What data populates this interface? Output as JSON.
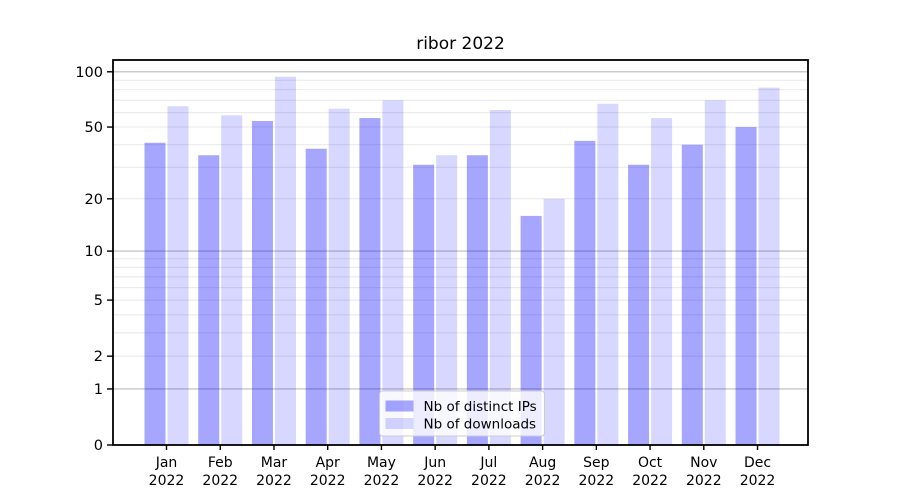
{
  "chart_data": {
    "type": "bar",
    "title": "ribor 2022",
    "categories": [
      "Jan",
      "Feb",
      "Mar",
      "Apr",
      "May",
      "Jun",
      "Jul",
      "Aug",
      "Sep",
      "Oct",
      "Nov",
      "Dec"
    ],
    "category_year": "2022",
    "series": [
      {
        "name": "Nb of distinct IPs",
        "color": "rgba(0,0,255,0.35)",
        "values": [
          41,
          35,
          54,
          38,
          56,
          31,
          35,
          16,
          42,
          31,
          40,
          50
        ]
      },
      {
        "name": "Nb of downloads",
        "color": "rgba(0,0,255,0.155)",
        "values": [
          65,
          58,
          94,
          63,
          70,
          35,
          62,
          20,
          67,
          56,
          70,
          82
        ]
      }
    ],
    "y_axis": {
      "scale": "log1p",
      "tick_labels": [
        "0",
        "1",
        "2",
        "5",
        "10",
        "20",
        "50",
        "100"
      ],
      "tick_values": [
        0,
        1,
        2,
        5,
        10,
        20,
        50,
        100
      ],
      "major_gridlines": [
        1,
        10,
        100
      ],
      "minor_gridlines": [
        2,
        3,
        4,
        5,
        6,
        7,
        8,
        9,
        20,
        30,
        40,
        50,
        60,
        70,
        80,
        90
      ],
      "top_value": 116
    },
    "legend": {
      "position": "lower center",
      "entries": [
        "Nb of distinct IPs",
        "Nb of downloads"
      ]
    },
    "grid": true
  },
  "colors": {
    "background": "#ffffff",
    "spine": "#000000",
    "grid_major": "#bcbcbc",
    "grid_minor": "#e8e8e8",
    "tick": "#000000",
    "text": "#000000",
    "legend_bg": "rgba(255,255,255,0.8)",
    "legend_border": "#cccccc"
  }
}
